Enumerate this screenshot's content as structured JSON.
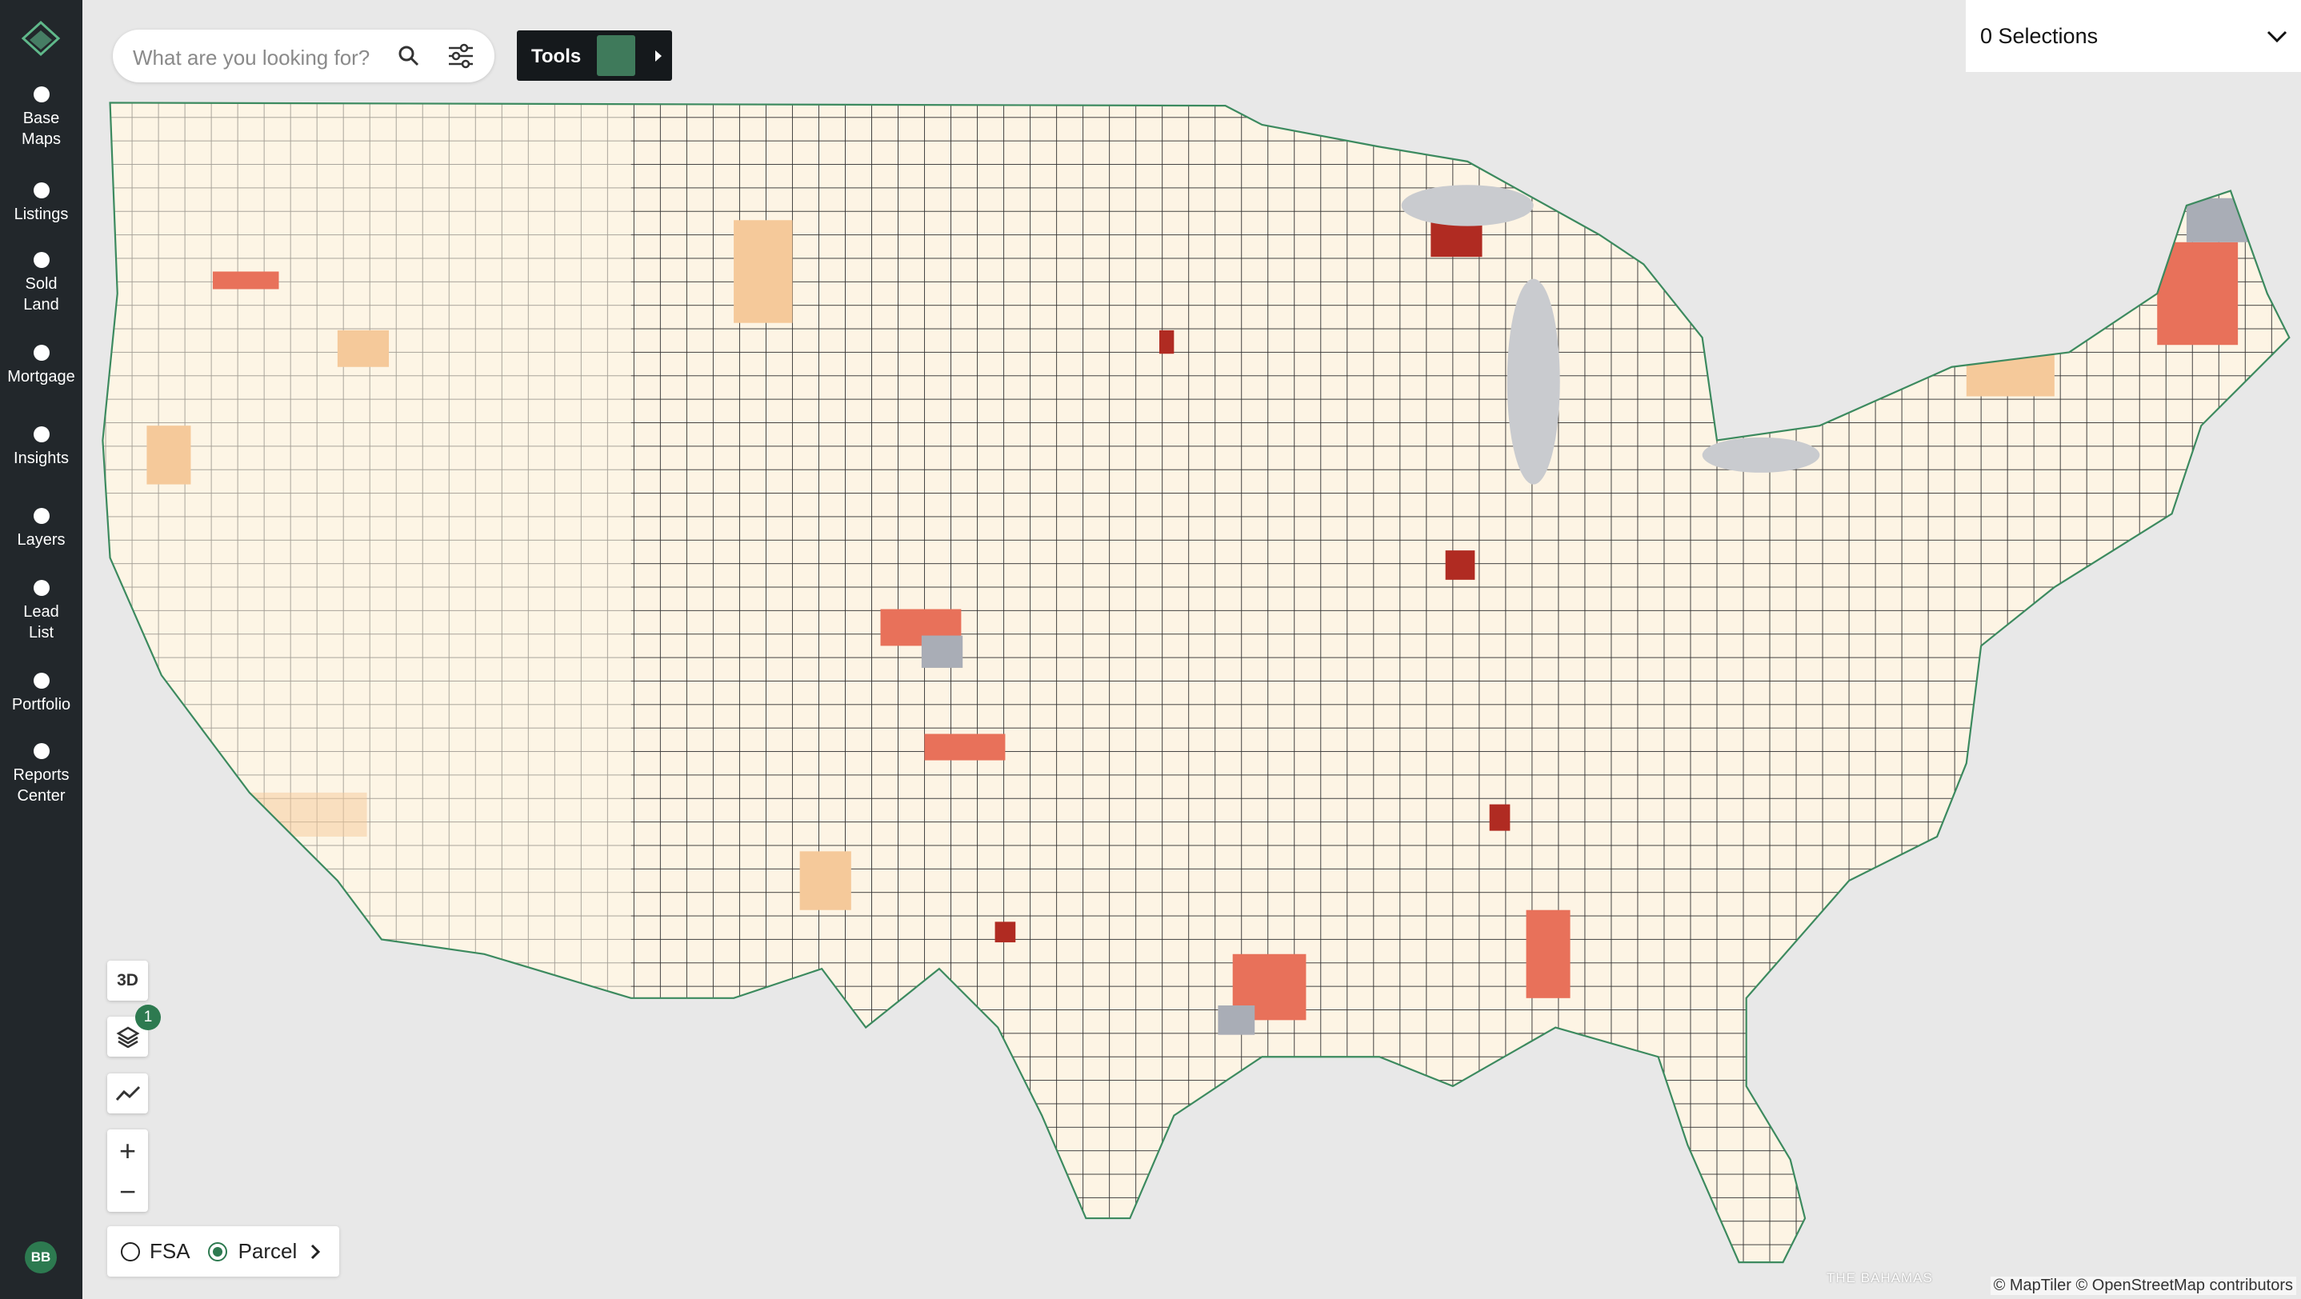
{
  "sidebar": {
    "items": [
      {
        "lines": [
          "Base",
          "Maps"
        ]
      },
      {
        "lines": [
          "Listings"
        ]
      },
      {
        "lines": [
          "Sold",
          "Land"
        ]
      },
      {
        "lines": [
          "Mortgage"
        ]
      },
      {
        "lines": [
          "Insights"
        ]
      },
      {
        "lines": [
          "Layers"
        ]
      },
      {
        "lines": [
          "Lead",
          "List"
        ]
      },
      {
        "lines": [
          "Portfolio"
        ]
      },
      {
        "lines": [
          "Reports",
          "Center"
        ]
      }
    ],
    "user_initials": "BB"
  },
  "search": {
    "placeholder": "What are you looking for?"
  },
  "tools": {
    "label": "Tools"
  },
  "selections": {
    "label": "0 Selections"
  },
  "map_controls": {
    "three_d": "3D",
    "layers_badge": "1",
    "zoom_in": "+",
    "zoom_out": "−"
  },
  "layer_toggle": {
    "options": [
      "FSA",
      "Parcel"
    ]
  },
  "map_labels": [
    "THE BAHAMAS"
  ],
  "attribution": "© MapTiler © OpenStreetMap contributors"
}
